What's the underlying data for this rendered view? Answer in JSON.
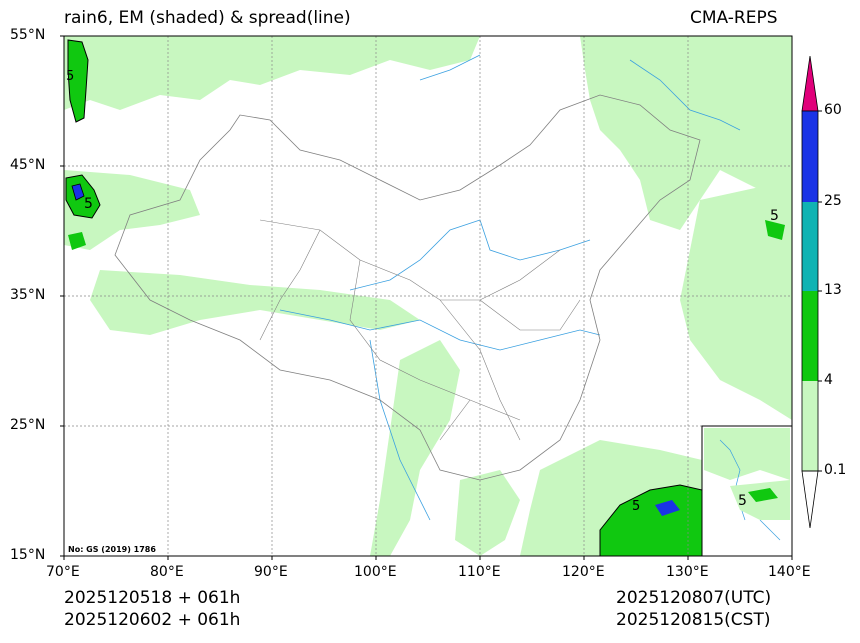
{
  "header": {
    "title_left": "rain6, EM (shaded) & spread(line)",
    "title_right": "CMA-REPS"
  },
  "map": {
    "lat_labels": [
      "55°N",
      "45°N",
      "35°N",
      "25°N",
      "15°N"
    ],
    "lon_labels": [
      "70°E",
      "80°E",
      "90°E",
      "100°E",
      "110°E",
      "120°E",
      "130°E",
      "140°E"
    ],
    "credit": "No: GS (2019) 1786",
    "contour_labels": [
      "5",
      "5",
      "5",
      "5",
      "5"
    ]
  },
  "colorbar": {
    "ticks": [
      "60",
      "25",
      "13",
      "4",
      "0.1"
    ],
    "colors": {
      "over": "#e0007a",
      "c25_60": "#1a33e6",
      "c13_25": "#10b3b3",
      "c4_13": "#10c810",
      "c01_4": "#c8f7c0",
      "under": "#ffffff"
    }
  },
  "footer": {
    "init_utc": "2025120518  +  061h",
    "init_cst": "2025120602  +  061h",
    "valid_utc": "2025120807(UTC)",
    "valid_cst": "2025120815(CST)"
  }
}
